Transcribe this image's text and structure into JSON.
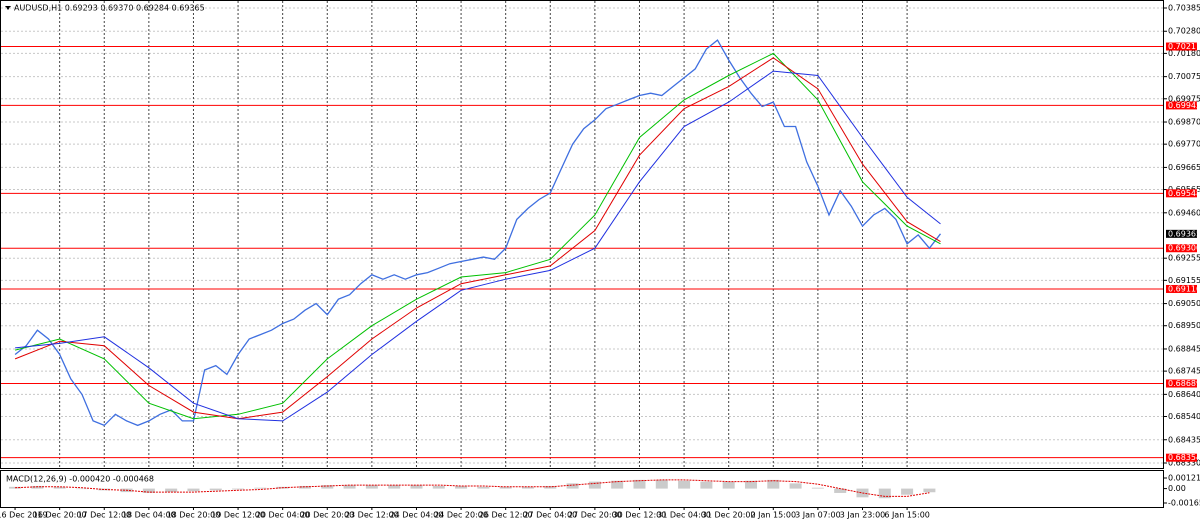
{
  "chart_data": [
    {
      "type": "line",
      "title": "AUDUSD,H1 0.69293 0.69370 0.69284 0.69365",
      "grid": true,
      "xlim": [
        -5.4,
        411.8
      ],
      "ylim": [
        0.6833,
        0.70385
      ],
      "xticks": [
        {
          "value": 0,
          "label": "16 Dec 2019"
        },
        {
          "value": 16,
          "label": "16 Dec 20:00"
        },
        {
          "value": 32,
          "label": "17 Dec 12:00"
        },
        {
          "value": 48,
          "label": "18 Dec 04:00"
        },
        {
          "value": 64,
          "label": "18 Dec 20:00"
        },
        {
          "value": 80,
          "label": "19 Dec 12:00"
        },
        {
          "value": 96,
          "label": "20 Dec 04:00"
        },
        {
          "value": 112,
          "label": "20 Dec 20:00"
        },
        {
          "value": 128,
          "label": "23 Dec 12:00"
        },
        {
          "value": 144,
          "label": "24 Dec 04:00"
        },
        {
          "value": 160,
          "label": "24 Dec 20:00"
        },
        {
          "value": 176,
          "label": "26 Dec 12:00"
        },
        {
          "value": 192,
          "label": "27 Dec 04:00"
        },
        {
          "value": 208,
          "label": "27 Dec 20:00"
        },
        {
          "value": 224,
          "label": "30 Dec 12:00"
        },
        {
          "value": 240,
          "label": "31 Dec 04:00"
        },
        {
          "value": 256,
          "label": "31 Dec 20:00"
        },
        {
          "value": 272,
          "label": "2 Jan 15:00"
        },
        {
          "value": 288,
          "label": "3 Jan 07:00"
        },
        {
          "value": 304,
          "label": "3 Jan 23:00"
        },
        {
          "value": 320,
          "label": "6 Jan 15:00"
        }
      ],
      "yticks": [
        {
          "value": 0.70385,
          "label": "0.70385"
        },
        {
          "value": 0.7028,
          "label": "0.70280"
        },
        {
          "value": 0.7018,
          "label": "0.70180"
        },
        {
          "value": 0.70075,
          "label": "0.70075"
        },
        {
          "value": 0.69975,
          "label": "0.69975"
        },
        {
          "value": 0.6987,
          "label": "0.69870"
        },
        {
          "value": 0.6977,
          "label": "0.69770"
        },
        {
          "value": 0.69665,
          "label": "0.69665"
        },
        {
          "value": 0.69565,
          "label": "0.69565"
        },
        {
          "value": 0.6946,
          "label": "0.69460"
        },
        {
          "value": 0.69255,
          "label": "0.69255"
        },
        {
          "value": 0.69155,
          "label": "0.69155"
        },
        {
          "value": 0.6905,
          "label": "0.69050"
        },
        {
          "value": 0.6895,
          "label": "0.68950"
        },
        {
          "value": 0.68845,
          "label": "0.68845"
        },
        {
          "value": 0.68745,
          "label": "0.68745"
        },
        {
          "value": 0.6864,
          "label": "0.68640"
        },
        {
          "value": 0.6854,
          "label": "0.68540"
        },
        {
          "value": 0.68435,
          "label": "0.68435"
        },
        {
          "value": 0.6833,
          "label": "0.68330"
        }
      ],
      "levels": [
        {
          "value": 0.70211,
          "label": "0.70211"
        },
        {
          "value": 0.69945,
          "label": "0.69945"
        },
        {
          "value": 0.69548,
          "label": "0.69548"
        },
        {
          "value": 0.693,
          "label": "0.69300"
        },
        {
          "value": 0.69116,
          "label": "0.69116"
        },
        {
          "value": 0.68689,
          "label": "0.68689"
        },
        {
          "value": 0.68354,
          "label": "0.68354"
        }
      ],
      "level_color": "#ff0000",
      "current": 0.69365,
      "series": [
        {
          "color": "#3f6fe0",
          "x": [
            0,
            4,
            8,
            12,
            16,
            20,
            24,
            28,
            32,
            36,
            40,
            44,
            48,
            52,
            56,
            60,
            64,
            68,
            72,
            76,
            80,
            84,
            88,
            92,
            96,
            100,
            104,
            108,
            112,
            116,
            120,
            124,
            128,
            132,
            136,
            140,
            144,
            148,
            152,
            156,
            160,
            164,
            168,
            172,
            176,
            180,
            184,
            188,
            192,
            196,
            200,
            204,
            208,
            212,
            216,
            220,
            224,
            228,
            232,
            236,
            240,
            244,
            248,
            252,
            256,
            260,
            264,
            268,
            272,
            276,
            280,
            284,
            288,
            292,
            296,
            300,
            304,
            308,
            312,
            316,
            320,
            324,
            328,
            332
          ],
          "values": [
            0.6882,
            0.6886,
            0.6893,
            0.6889,
            0.6882,
            0.6871,
            0.6864,
            0.6852,
            0.685,
            0.6855,
            0.6852,
            0.685,
            0.6852,
            0.6855,
            0.6857,
            0.6852,
            0.6852,
            0.6875,
            0.6877,
            0.6873,
            0.6882,
            0.6889,
            0.6891,
            0.6893,
            0.6896,
            0.6898,
            0.6902,
            0.6905,
            0.69,
            0.6907,
            0.6909,
            0.6914,
            0.6918,
            0.6916,
            0.6918,
            0.6916,
            0.6918,
            0.6919,
            0.6921,
            0.6923,
            0.6924,
            0.6925,
            0.6926,
            0.6925,
            0.693,
            0.6943,
            0.6948,
            0.6952,
            0.6955,
            0.6966,
            0.6977,
            0.6984,
            0.6988,
            0.6993,
            0.6995,
            0.6997,
            0.6999,
            0.7,
            0.6999,
            0.7003,
            0.7007,
            0.7011,
            0.702,
            0.7024,
            0.7015,
            0.7007,
            0.7,
            0.6994,
            0.6996,
            0.6985,
            0.6985,
            0.6969,
            0.6958,
            0.6945,
            0.6956,
            0.6949,
            0.694,
            0.6945,
            0.6948,
            0.6943,
            0.6932,
            0.6936,
            0.693,
            0.69365
          ]
        },
        {
          "color": "#00c000",
          "x": [
            0,
            16,
            32,
            48,
            64,
            80,
            96,
            112,
            128,
            144,
            160,
            176,
            192,
            208,
            224,
            240,
            256,
            272,
            288,
            304,
            320,
            332
          ],
          "values": [
            0.6884,
            0.6889,
            0.688,
            0.686,
            0.6853,
            0.6855,
            0.686,
            0.688,
            0.6895,
            0.6907,
            0.6917,
            0.6919,
            0.6925,
            0.6945,
            0.698,
            0.6997,
            0.7008,
            0.7018,
            0.6997,
            0.696,
            0.694,
            0.6932
          ]
        },
        {
          "color": "#e00000",
          "x": [
            0,
            16,
            32,
            48,
            64,
            80,
            96,
            112,
            128,
            144,
            160,
            176,
            192,
            208,
            224,
            240,
            256,
            272,
            288,
            304,
            320,
            332
          ],
          "values": [
            0.688,
            0.6888,
            0.6886,
            0.6868,
            0.6856,
            0.6853,
            0.6856,
            0.6872,
            0.6889,
            0.6903,
            0.6914,
            0.6918,
            0.6922,
            0.6938,
            0.6972,
            0.6993,
            0.7003,
            0.7016,
            0.7002,
            0.6968,
            0.6942,
            0.6933
          ]
        },
        {
          "color": "#2030e0",
          "x": [
            0,
            16,
            32,
            48,
            64,
            80,
            96,
            112,
            128,
            144,
            160,
            176,
            192,
            208,
            224,
            240,
            256,
            272,
            288,
            304,
            320,
            332
          ],
          "values": [
            0.6885,
            0.6887,
            0.689,
            0.6876,
            0.686,
            0.6853,
            0.6852,
            0.6865,
            0.6882,
            0.6897,
            0.6911,
            0.6916,
            0.692,
            0.693,
            0.696,
            0.6985,
            0.6996,
            0.701,
            0.7008,
            0.698,
            0.6953,
            0.6941
          ]
        }
      ]
    },
    {
      "type": "macd",
      "title": "MACD(12,26,9) -0.000420 -0.000468",
      "xlim": [
        -5.4,
        411.8
      ],
      "ylim": [
        -0.001651,
        0.001214
      ],
      "yticks": [
        {
          "value": 0.001214,
          "label": "0.001214"
        },
        {
          "value": 0,
          "label": "0.00"
        },
        {
          "value": -0.001651,
          "label": "-0.001651"
        }
      ],
      "x": [
        0,
        8,
        16,
        24,
        32,
        40,
        48,
        56,
        64,
        72,
        80,
        88,
        96,
        104,
        112,
        120,
        128,
        136,
        144,
        152,
        160,
        168,
        176,
        184,
        192,
        200,
        208,
        216,
        224,
        232,
        240,
        248,
        256,
        264,
        272,
        280,
        288,
        296,
        304,
        312,
        320,
        328
      ],
      "series": [
        {
          "type": "bar",
          "color": "#a0a0a0",
          "values": [
            0.0002,
            0.0003,
            0.0002,
            0,
            -0.0002,
            -0.0004,
            -0.0005,
            -0.0004,
            -0.0003,
            -0.0002,
            -0.0001,
            0.0001,
            0.0002,
            0.0003,
            0.0004,
            0.0004,
            0.0004,
            0.0004,
            0.0004,
            0.0003,
            0.0003,
            0.0002,
            0.0002,
            0.0002,
            0.0003,
            0.0006,
            0.0008,
            0.0009,
            0.001,
            0.001,
            0.0009,
            0.0008,
            0.0008,
            0.0009,
            0.001,
            0.0006,
            0.0001,
            -0.0005,
            -0.001,
            -0.0011,
            -0.0007,
            -0.00042
          ]
        },
        {
          "type": "line",
          "color": "#e00000",
          "values": [
            0.0001,
            0.0002,
            0.0002,
            0.0001,
            -0.0001,
            -0.0002,
            -0.0004,
            -0.0004,
            -0.0004,
            -0.0003,
            -0.0002,
            -0.0001,
            0.0001,
            0.0002,
            0.0003,
            0.0004,
            0.0004,
            0.0004,
            0.0004,
            0.0004,
            0.0003,
            0.0003,
            0.0002,
            0.0002,
            0.0002,
            0.0004,
            0.0006,
            0.0008,
            0.0009,
            0.001,
            0.001,
            0.0009,
            0.0008,
            0.0008,
            0.0009,
            0.0008,
            0.0005,
            0.0,
            -0.0005,
            -0.0009,
            -0.0009,
            -0.000468
          ]
        }
      ]
    }
  ]
}
